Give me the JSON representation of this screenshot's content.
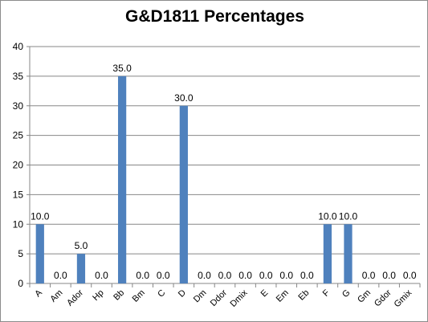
{
  "chart_data": {
    "type": "bar",
    "title": "G&D1811 Percentages",
    "xlabel": "",
    "ylabel": "",
    "ylim": [
      0,
      40
    ],
    "yticks": [
      "0",
      "5",
      "10",
      "15",
      "20",
      "25",
      "30",
      "35",
      "40"
    ],
    "grid": true,
    "legend": "none",
    "bar_color": "#4f81bd",
    "categories": [
      "A",
      "Am",
      "Ador",
      "Hp",
      "Bb",
      "Bm",
      "C",
      "D",
      "Dm",
      "Ddor",
      "Dmix",
      "E",
      "Em",
      "Eb",
      "F",
      "G",
      "Gm",
      "Gdor",
      "Gmix"
    ],
    "values": [
      10.0,
      0.0,
      5.0,
      0.0,
      35.0,
      0.0,
      0.0,
      30.0,
      0.0,
      0.0,
      0.0,
      0.0,
      0.0,
      0.0,
      10.0,
      10.0,
      0.0,
      0.0,
      0.0
    ],
    "data_labels": [
      "10.0",
      "0.0",
      "5.0",
      "0.0",
      "35.0",
      "0.0",
      "0.0",
      "30.0",
      "0.0",
      "0.0",
      "0.0",
      "0.0",
      "0.0",
      "0.0",
      "10.0",
      "10.0",
      "0.0",
      "0.0",
      "0.0"
    ]
  }
}
